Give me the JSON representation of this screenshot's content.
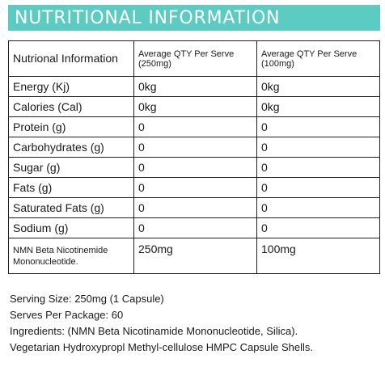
{
  "banner": {
    "title": "NUTRITIONAL INFORMATION",
    "color": "#5ccbc2"
  },
  "table": {
    "headers": {
      "label": "Nutrional Information",
      "col1": "Average QTY Per Serve (250mg)",
      "col2": "Average QTY Per Serve (100mg)"
    },
    "rows": [
      {
        "label": "Energy (Kj)",
        "v1": "0kg",
        "v2": "0kg"
      },
      {
        "label": "Calories (Cal)",
        "v1": "0kg",
        "v2": "0kg"
      },
      {
        "label": "Protein (g)",
        "v1": "0",
        "v2": "0"
      },
      {
        "label": "Carbohydrates (g)",
        "v1": "0",
        "v2": "0"
      },
      {
        "label": "Sugar (g)",
        "v1": "0",
        "v2": "0"
      },
      {
        "label": "Fats (g)",
        "v1": "0",
        "v2": "0"
      },
      {
        "label": "Saturated Fats (g)",
        "v1": "0",
        "v2": "0"
      },
      {
        "label": "Sodium (g)",
        "v1": "0",
        "v2": "0"
      },
      {
        "label": "NMN Beta Nicotinemide Mononucleotide.",
        "v1": "250mg",
        "v2": "100mg"
      }
    ]
  },
  "footer": {
    "serving_size": "Serving Size: 250mg (1 Capsule)",
    "serves": "Serves Per Package: 60",
    "ingredients": "Ingredients: (NMN Beta Nicotinamide Mononucleotide, Silica).",
    "capsule": "Vegetarian Hydroxypropl Methyl-cellulose HMPC Capsule Shells."
  }
}
